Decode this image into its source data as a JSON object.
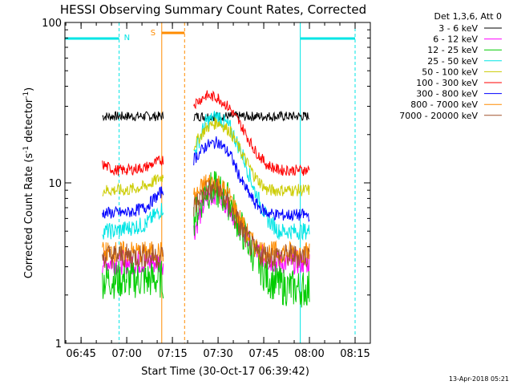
{
  "chart_data": {
    "type": "line",
    "title": "HESSI Observing Summary Count Rates, Corrected",
    "xlabel": "Start Time (30-Oct-17 06:39:42)",
    "ylabel": "Corrected Count Rate (s",
    "ylabel_sup1": "-1",
    "ylabel_mid": " detector",
    "ylabel_sup2": "-1",
    "ylabel_end": ")",
    "yscale": "log",
    "xlim": [
      "06:39:42",
      "08:20:00"
    ],
    "ylim": [
      1,
      100
    ],
    "x_ticks": [
      "06:45",
      "07:00",
      "07:15",
      "07:30",
      "07:45",
      "08:00",
      "08:15"
    ],
    "y_ticks": [
      "1",
      "10",
      "100"
    ],
    "legend_title": "Det 1,3,6, Att 0",
    "legend_position": "right",
    "night_label": "N",
    "saa_label": "S",
    "footer_date": "13-Apr-2018 05:21",
    "series": [
      {
        "name": "3 - 6 keV",
        "color": "#000000",
        "x": [
          "06:52",
          "06:56",
          "07:00",
          "07:06",
          "07:12",
          "07:16",
          "07:20",
          "07:22",
          "07:26",
          "07:30",
          "07:34",
          "07:38",
          "07:42",
          "07:46",
          "07:50",
          "07:54",
          "07:58",
          "08:00"
        ],
        "values": [
          26,
          26,
          26,
          26,
          26,
          null,
          null,
          26,
          26,
          26,
          26,
          26,
          26,
          26,
          26,
          26,
          26,
          26
        ]
      },
      {
        "name": "6 - 12 keV",
        "color": "#ff00ff",
        "x": [
          "06:52",
          "06:56",
          "07:00",
          "07:06",
          "07:12",
          "07:16",
          "07:20",
          "07:22",
          "07:26",
          "07:30",
          "07:34",
          "07:38",
          "07:42",
          "07:46",
          "07:50",
          "07:54",
          "07:58",
          "08:00"
        ],
        "values": [
          3.2,
          3.2,
          3.2,
          3.2,
          3.2,
          null,
          null,
          5,
          8,
          9,
          7,
          5,
          3.8,
          3.3,
          3.2,
          3.2,
          3.2,
          3.2
        ]
      },
      {
        "name": "12 - 25 keV",
        "color": "#00cc00",
        "x": [
          "06:52",
          "06:56",
          "07:00",
          "07:06",
          "07:12",
          "07:16",
          "07:20",
          "07:22",
          "07:26",
          "07:30",
          "07:34",
          "07:38",
          "07:42",
          "07:46",
          "07:50",
          "07:54",
          "07:58",
          "08:00"
        ],
        "values": [
          2.5,
          2.5,
          2.5,
          2.5,
          2.5,
          null,
          null,
          6,
          9,
          9,
          7.5,
          5,
          3.5,
          2.6,
          2.3,
          2.2,
          2.2,
          2.2
        ]
      },
      {
        "name": "25 - 50 keV",
        "color": "#00e5e5",
        "x": [
          "06:52",
          "06:56",
          "07:00",
          "07:06",
          "07:12",
          "07:16",
          "07:20",
          "07:22",
          "07:26",
          "07:30",
          "07:34",
          "07:38",
          "07:42",
          "07:46",
          "07:50",
          "07:54",
          "07:58",
          "08:00"
        ],
        "values": [
          5,
          5,
          5.2,
          5.5,
          7,
          null,
          null,
          15,
          24,
          26,
          22,
          15,
          9,
          6,
          5,
          5,
          5,
          5
        ]
      },
      {
        "name": "50 - 100 keV",
        "color": "#cccc00",
        "x": [
          "06:52",
          "06:56",
          "07:00",
          "07:06",
          "07:12",
          "07:16",
          "07:20",
          "07:22",
          "07:26",
          "07:30",
          "07:34",
          "07:38",
          "07:42",
          "07:46",
          "07:50",
          "07:54",
          "07:58",
          "08:00"
        ],
        "values": [
          9,
          9,
          9,
          9.5,
          11,
          null,
          null,
          17,
          22,
          24,
          21,
          15,
          11,
          9,
          9,
          9,
          9,
          9
        ]
      },
      {
        "name": "100 - 300 keV",
        "color": "#ff0000",
        "x": [
          "06:52",
          "06:56",
          "07:00",
          "07:06",
          "07:12",
          "07:16",
          "07:20",
          "07:22",
          "07:26",
          "07:30",
          "07:34",
          "07:38",
          "07:42",
          "07:46",
          "07:50",
          "07:54",
          "07:58",
          "08:00"
        ],
        "values": [
          13,
          12,
          12,
          12.5,
          14,
          null,
          null,
          31,
          35,
          34,
          29,
          22,
          16,
          13,
          12,
          12,
          12,
          12
        ]
      },
      {
        "name": "300 - 800 keV",
        "color": "#0000ff",
        "x": [
          "06:52",
          "06:56",
          "07:00",
          "07:06",
          "07:12",
          "07:16",
          "07:20",
          "07:22",
          "07:26",
          "07:30",
          "07:34",
          "07:38",
          "07:42",
          "07:46",
          "07:50",
          "07:54",
          "07:58",
          "08:00"
        ],
        "values": [
          6.5,
          6.5,
          6.5,
          7,
          9,
          null,
          null,
          14,
          17,
          18,
          15,
          10,
          7.5,
          6.5,
          6.3,
          6.3,
          6.3,
          6.3
        ]
      },
      {
        "name": "800 - 7000 keV",
        "color": "#ff8c00",
        "x": [
          "06:52",
          "06:56",
          "07:00",
          "07:06",
          "07:12",
          "07:16",
          "07:20",
          "07:22",
          "07:26",
          "07:30",
          "07:34",
          "07:38",
          "07:42",
          "07:46",
          "07:50",
          "07:54",
          "07:58",
          "08:00"
        ],
        "values": [
          3.7,
          3.7,
          3.7,
          3.7,
          3.7,
          null,
          null,
          8,
          10,
          10,
          8,
          5.5,
          4,
          3.7,
          3.7,
          3.7,
          3.7,
          3.7
        ]
      },
      {
        "name": "7000 - 20000 keV",
        "color": "#a0522d",
        "x": [
          "06:52",
          "06:56",
          "07:00",
          "07:06",
          "07:12",
          "07:16",
          "07:20",
          "07:22",
          "07:26",
          "07:30",
          "07:34",
          "07:38",
          "07:42",
          "07:46",
          "07:50",
          "07:54",
          "07:58",
          "08:00"
        ],
        "values": [
          3.5,
          3.5,
          3.5,
          3.5,
          3.5,
          null,
          null,
          7,
          9,
          9,
          7,
          5,
          3.7,
          3.5,
          3.5,
          3.5,
          3.5,
          3.5
        ]
      }
    ],
    "night_intervals": [
      [
        "06:39:42",
        "06:57:30"
      ],
      [
        "07:57:00",
        "08:15:00"
      ]
    ],
    "saa_interval": [
      "07:11:30",
      "07:19:00"
    ]
  }
}
